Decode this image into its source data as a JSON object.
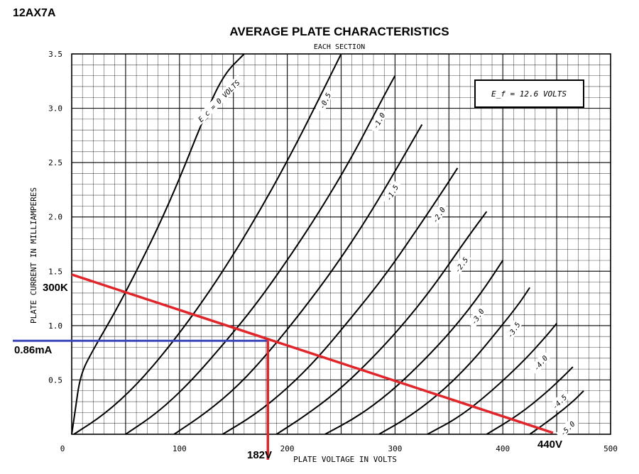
{
  "chart_data": {
    "type": "line",
    "tube": "12AX7A",
    "title": "AVERAGE PLATE CHARACTERISTICS",
    "subtitle": "EACH SECTION",
    "xlabel": "PLATE VOLTAGE IN VOLTS",
    "ylabel": "PLATE CURRENT IN MILLIAMPERES",
    "xlim": [
      0,
      500
    ],
    "ylim": [
      0,
      3.5
    ],
    "x_ticks": [
      "0",
      "100",
      "200",
      "300",
      "400",
      "500"
    ],
    "y_ticks": [
      "0.5",
      "1.0",
      "1.5",
      "2.0",
      "2.5",
      "3.0",
      "3.5"
    ],
    "grid": true,
    "heater_box": "E_f = 12.6 VOLTS",
    "colors": {
      "grid": "#000000",
      "load_line": "#e0262b",
      "op_line": "#3a46b8",
      "curves": "#000000"
    },
    "curves": [
      {
        "label": "E_c = 0 VOLTS",
        "points": [
          [
            0,
            0
          ],
          [
            3,
            0.2
          ],
          [
            8,
            0.55
          ],
          [
            20,
            0.78
          ],
          [
            40,
            1.12
          ],
          [
            60,
            1.5
          ],
          [
            80,
            1.9
          ],
          [
            100,
            2.35
          ],
          [
            120,
            2.85
          ],
          [
            140,
            3.3
          ],
          [
            160,
            3.5
          ]
        ]
      },
      {
        "label": "-0.5",
        "points": [
          [
            2,
            0
          ],
          [
            30,
            0.18
          ],
          [
            60,
            0.45
          ],
          [
            90,
            0.8
          ],
          [
            120,
            1.2
          ],
          [
            150,
            1.65
          ],
          [
            180,
            2.15
          ],
          [
            210,
            2.7
          ],
          [
            240,
            3.3
          ],
          [
            250,
            3.5
          ]
        ]
      },
      {
        "label": "-1.0",
        "points": [
          [
            50,
            0
          ],
          [
            80,
            0.2
          ],
          [
            110,
            0.48
          ],
          [
            140,
            0.82
          ],
          [
            170,
            1.18
          ],
          [
            200,
            1.6
          ],
          [
            230,
            2.05
          ],
          [
            260,
            2.55
          ],
          [
            290,
            3.12
          ],
          [
            300,
            3.3
          ]
        ]
      },
      {
        "label": "-1.5",
        "points": [
          [
            95,
            0
          ],
          [
            125,
            0.2
          ],
          [
            155,
            0.45
          ],
          [
            185,
            0.78
          ],
          [
            215,
            1.15
          ],
          [
            245,
            1.55
          ],
          [
            275,
            2.0
          ],
          [
            300,
            2.42
          ],
          [
            325,
            2.85
          ]
        ]
      },
      {
        "label": "-2.0",
        "points": [
          [
            140,
            0
          ],
          [
            170,
            0.18
          ],
          [
            200,
            0.42
          ],
          [
            230,
            0.72
          ],
          [
            260,
            1.08
          ],
          [
            290,
            1.45
          ],
          [
            320,
            1.88
          ],
          [
            345,
            2.25
          ],
          [
            358,
            2.45
          ]
        ]
      },
      {
        "label": "-2.5",
        "points": [
          [
            190,
            0
          ],
          [
            215,
            0.16
          ],
          [
            245,
            0.38
          ],
          [
            275,
            0.66
          ],
          [
            305,
            0.98
          ],
          [
            335,
            1.35
          ],
          [
            365,
            1.78
          ],
          [
            385,
            2.05
          ]
        ]
      },
      {
        "label": "-3.0",
        "points": [
          [
            235,
            0
          ],
          [
            265,
            0.16
          ],
          [
            295,
            0.38
          ],
          [
            325,
            0.66
          ],
          [
            355,
            0.98
          ],
          [
            380,
            1.3
          ],
          [
            400,
            1.6
          ]
        ]
      },
      {
        "label": "-3.5",
        "points": [
          [
            285,
            0
          ],
          [
            310,
            0.14
          ],
          [
            340,
            0.36
          ],
          [
            370,
            0.65
          ],
          [
            395,
            0.95
          ],
          [
            415,
            1.2
          ],
          [
            425,
            1.35
          ]
        ]
      },
      {
        "label": "-4.0",
        "points": [
          [
            330,
            0
          ],
          [
            360,
            0.16
          ],
          [
            390,
            0.4
          ],
          [
            420,
            0.68
          ],
          [
            440,
            0.9
          ],
          [
            450,
            1.02
          ]
        ]
      },
      {
        "label": "-4.5",
        "points": [
          [
            385,
            0
          ],
          [
            415,
            0.18
          ],
          [
            440,
            0.38
          ],
          [
            458,
            0.55
          ],
          [
            465,
            0.62
          ]
        ]
      },
      {
        "label": "-5.0",
        "points": [
          [
            425,
            0
          ],
          [
            445,
            0.14
          ],
          [
            465,
            0.3
          ],
          [
            475,
            0.4
          ]
        ]
      }
    ],
    "annotations": {
      "load_line_label": "300K",
      "current_label": "0.86mA",
      "voltage_label": "182V",
      "supply_label": "440V",
      "load_line_start": [
        0,
        1.47
      ],
      "load_line_end": [
        440,
        0
      ],
      "operating_point": [
        182,
        0.86
      ]
    }
  }
}
